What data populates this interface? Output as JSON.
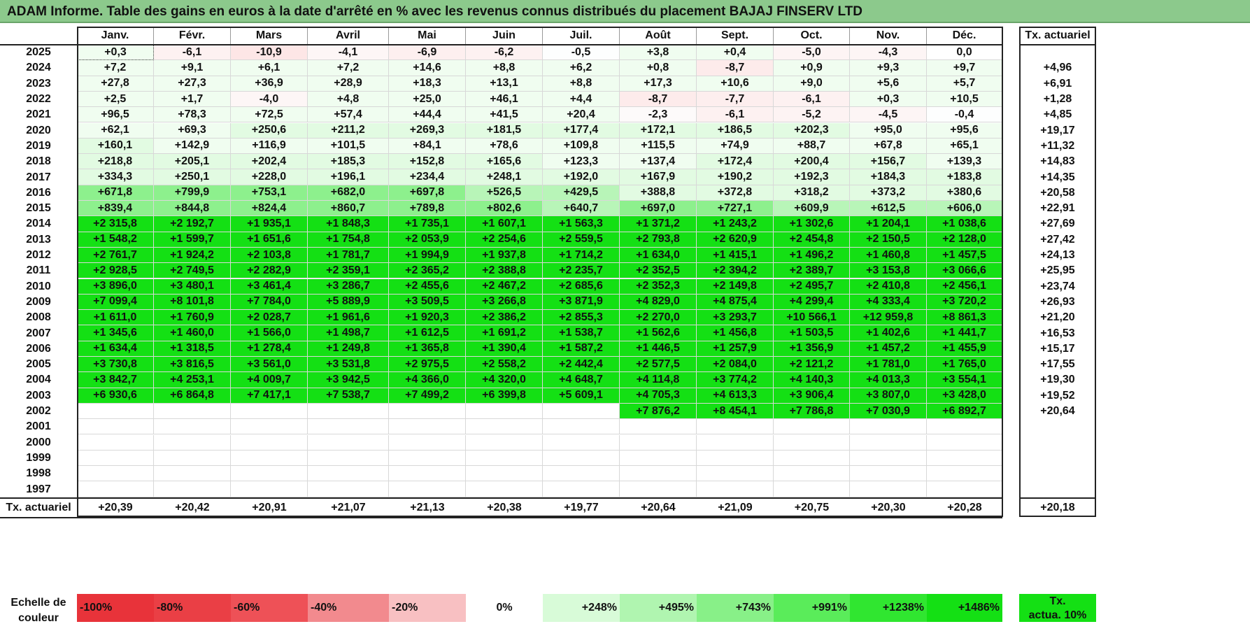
{
  "title": "ADAM Informe. Table des gains en euros à la date d'arrêté en % avec les revenus connus distribués du placement BAJAJ FINSERV LTD",
  "months": [
    "Janv.",
    "Févr.",
    "Mars",
    "Avril",
    "Mai",
    "Juin",
    "Juil.",
    "Août",
    "Sept.",
    "Oct.",
    "Nov.",
    "Déc."
  ],
  "actuarial_header": "Tx. actuariel",
  "rows": [
    {
      "year": "2025",
      "values": [
        "+0,3",
        "-6,1",
        "-10,9",
        "-4,1",
        "-6,9",
        "-6,2",
        "-0,5",
        "+3,8",
        "+0,4",
        "-5,0",
        "-4,3",
        "0,0"
      ],
      "rate": ""
    },
    {
      "year": "2024",
      "values": [
        "+7,2",
        "+9,1",
        "+6,1",
        "+7,2",
        "+14,6",
        "+8,8",
        "+6,2",
        "+0,8",
        "-8,7",
        "+0,9",
        "+9,3",
        "+9,7"
      ],
      "rate": "+4,96"
    },
    {
      "year": "2023",
      "values": [
        "+27,8",
        "+27,3",
        "+36,9",
        "+28,9",
        "+18,3",
        "+13,1",
        "+8,8",
        "+17,3",
        "+10,6",
        "+9,0",
        "+5,6",
        "+5,7"
      ],
      "rate": "+6,91"
    },
    {
      "year": "2022",
      "values": [
        "+2,5",
        "+1,7",
        "-4,0",
        "+4,8",
        "+25,0",
        "+46,1",
        "+4,4",
        "-8,7",
        "-7,7",
        "-6,1",
        "+0,3",
        "+10,5"
      ],
      "rate": "+1,28"
    },
    {
      "year": "2021",
      "values": [
        "+96,5",
        "+78,3",
        "+72,5",
        "+57,4",
        "+44,4",
        "+41,5",
        "+20,4",
        "-2,3",
        "-6,1",
        "-5,2",
        "-4,5",
        "-0,4"
      ],
      "rate": "+4,85"
    },
    {
      "year": "2020",
      "values": [
        "+62,1",
        "+69,3",
        "+250,6",
        "+211,2",
        "+269,3",
        "+181,5",
        "+177,4",
        "+172,1",
        "+186,5",
        "+202,3",
        "+95,0",
        "+95,6"
      ],
      "rate": "+19,17"
    },
    {
      "year": "2019",
      "values": [
        "+160,1",
        "+142,9",
        "+116,9",
        "+101,5",
        "+84,1",
        "+78,6",
        "+109,8",
        "+115,5",
        "+74,9",
        "+88,7",
        "+67,8",
        "+65,1"
      ],
      "rate": "+11,32"
    },
    {
      "year": "2018",
      "values": [
        "+218,8",
        "+205,1",
        "+202,4",
        "+185,3",
        "+152,8",
        "+165,6",
        "+123,3",
        "+137,4",
        "+172,4",
        "+200,4",
        "+156,7",
        "+139,3"
      ],
      "rate": "+14,83"
    },
    {
      "year": "2017",
      "values": [
        "+334,3",
        "+250,1",
        "+228,0",
        "+196,1",
        "+234,4",
        "+248,1",
        "+192,0",
        "+167,9",
        "+190,2",
        "+192,3",
        "+184,3",
        "+183,8"
      ],
      "rate": "+14,35"
    },
    {
      "year": "2016",
      "values": [
        "+671,8",
        "+799,9",
        "+753,1",
        "+682,0",
        "+697,8",
        "+526,5",
        "+429,5",
        "+388,8",
        "+372,8",
        "+318,2",
        "+373,2",
        "+380,6"
      ],
      "rate": "+20,58"
    },
    {
      "year": "2015",
      "values": [
        "+839,4",
        "+844,8",
        "+824,4",
        "+860,7",
        "+789,8",
        "+802,6",
        "+640,7",
        "+697,0",
        "+727,1",
        "+609,9",
        "+612,5",
        "+606,0"
      ],
      "rate": "+22,91"
    },
    {
      "year": "2014",
      "values": [
        "+2 315,8",
        "+2 192,7",
        "+1 935,1",
        "+1 848,3",
        "+1 735,1",
        "+1 607,1",
        "+1 563,3",
        "+1 371,2",
        "+1 243,2",
        "+1 302,6",
        "+1 204,1",
        "+1 038,6"
      ],
      "rate": "+27,69"
    },
    {
      "year": "2013",
      "values": [
        "+1 548,2",
        "+1 599,7",
        "+1 651,6",
        "+1 754,8",
        "+2 053,9",
        "+2 254,6",
        "+2 559,5",
        "+2 793,8",
        "+2 620,9",
        "+2 454,8",
        "+2 150,5",
        "+2 128,0"
      ],
      "rate": "+27,42"
    },
    {
      "year": "2012",
      "values": [
        "+2 761,7",
        "+1 924,2",
        "+2 103,8",
        "+1 781,7",
        "+1 994,9",
        "+1 937,8",
        "+1 714,2",
        "+1 634,0",
        "+1 415,1",
        "+1 496,2",
        "+1 460,8",
        "+1 457,5"
      ],
      "rate": "+24,13"
    },
    {
      "year": "2011",
      "values": [
        "+2 928,5",
        "+2 749,5",
        "+2 282,9",
        "+2 359,1",
        "+2 365,2",
        "+2 388,8",
        "+2 235,7",
        "+2 352,5",
        "+2 394,2",
        "+2 389,7",
        "+3 153,8",
        "+3 066,6"
      ],
      "rate": "+25,95"
    },
    {
      "year": "2010",
      "values": [
        "+3 896,0",
        "+3 480,1",
        "+3 461,4",
        "+3 286,7",
        "+2 455,6",
        "+2 467,2",
        "+2 685,6",
        "+2 352,3",
        "+2 149,8",
        "+2 495,7",
        "+2 410,8",
        "+2 456,1"
      ],
      "rate": "+23,74"
    },
    {
      "year": "2009",
      "values": [
        "+7 099,4",
        "+8 101,8",
        "+7 784,0",
        "+5 889,9",
        "+3 509,5",
        "+3 266,8",
        "+3 871,9",
        "+4 829,0",
        "+4 875,4",
        "+4 299,4",
        "+4 333,4",
        "+3 720,2"
      ],
      "rate": "+26,93"
    },
    {
      "year": "2008",
      "values": [
        "+1 611,0",
        "+1 760,9",
        "+2 028,7",
        "+1 961,6",
        "+1 920,3",
        "+2 386,2",
        "+2 855,3",
        "+2 270,0",
        "+3 293,7",
        "+10 566,1",
        "+12 959,8",
        "+8 861,3"
      ],
      "rate": "+21,20"
    },
    {
      "year": "2007",
      "values": [
        "+1 345,6",
        "+1 460,0",
        "+1 566,0",
        "+1 498,7",
        "+1 612,5",
        "+1 691,2",
        "+1 538,7",
        "+1 562,6",
        "+1 456,8",
        "+1 503,5",
        "+1 402,6",
        "+1 441,7"
      ],
      "rate": "+16,53"
    },
    {
      "year": "2006",
      "values": [
        "+1 634,4",
        "+1 318,5",
        "+1 278,4",
        "+1 249,8",
        "+1 365,8",
        "+1 390,4",
        "+1 587,2",
        "+1 446,5",
        "+1 257,9",
        "+1 356,9",
        "+1 457,2",
        "+1 455,9"
      ],
      "rate": "+15,17"
    },
    {
      "year": "2005",
      "values": [
        "+3 730,8",
        "+3 816,5",
        "+3 561,0",
        "+3 531,8",
        "+2 975,5",
        "+2 558,2",
        "+2 442,4",
        "+2 577,5",
        "+2 084,0",
        "+2 121,2",
        "+1 781,0",
        "+1 765,0"
      ],
      "rate": "+17,55"
    },
    {
      "year": "2004",
      "values": [
        "+3 842,7",
        "+4 253,1",
        "+4 009,7",
        "+3 942,5",
        "+4 366,0",
        "+4 320,0",
        "+4 648,7",
        "+4 114,8",
        "+3 774,2",
        "+4 140,3",
        "+4 013,3",
        "+3 554,1"
      ],
      "rate": "+19,30"
    },
    {
      "year": "2003",
      "values": [
        "+6 930,6",
        "+6 864,8",
        "+7 417,1",
        "+7 538,7",
        "+7 499,2",
        "+6 399,8",
        "+5 609,1",
        "+4 705,3",
        "+4 613,3",
        "+3 906,4",
        "+3 807,0",
        "+3 428,0"
      ],
      "rate": "+19,52"
    },
    {
      "year": "2002",
      "values": [
        "",
        "",
        "",
        "",
        "",
        "",
        "",
        "+7 876,2",
        "+8 454,1",
        "+7 786,8",
        "+7 030,9",
        "+6 892,7"
      ],
      "rate": "+20,64"
    },
    {
      "year": "2001",
      "values": [
        "",
        "",
        "",
        "",
        "",
        "",
        "",
        "",
        "",
        "",
        "",
        ""
      ],
      "rate": ""
    },
    {
      "year": "2000",
      "values": [
        "",
        "",
        "",
        "",
        "",
        "",
        "",
        "",
        "",
        "",
        "",
        ""
      ],
      "rate": ""
    },
    {
      "year": "1999",
      "values": [
        "",
        "",
        "",
        "",
        "",
        "",
        "",
        "",
        "",
        "",
        "",
        ""
      ],
      "rate": ""
    },
    {
      "year": "1998",
      "values": [
        "",
        "",
        "",
        "",
        "",
        "",
        "",
        "",
        "",
        "",
        "",
        ""
      ],
      "rate": ""
    },
    {
      "year": "1997",
      "values": [
        "",
        "",
        "",
        "",
        "",
        "",
        "",
        "",
        "",
        "",
        "",
        ""
      ],
      "rate": ""
    }
  ],
  "footer": {
    "label": "Tx. actuariel",
    "values": [
      "+20,39",
      "+20,42",
      "+20,91",
      "+21,07",
      "+21,13",
      "+20,38",
      "+19,77",
      "+20,64",
      "+21,09",
      "+20,75",
      "+20,30",
      "+20,28"
    ],
    "rate": "+20,18"
  },
  "scale": {
    "label_line1": "Echelle de",
    "label_line2": "couleur",
    "items": [
      {
        "text": "-100%",
        "color": "#e8333a",
        "align": "left"
      },
      {
        "text": "-80%",
        "color": "#ea3f45",
        "align": "left"
      },
      {
        "text": "-60%",
        "color": "#ee5157",
        "align": "left"
      },
      {
        "text": "-40%",
        "color": "#f28a8e",
        "align": "left"
      },
      {
        "text": "-20%",
        "color": "#f8c0c2",
        "align": "left"
      },
      {
        "text": "0%",
        "color": "#ffffff",
        "align": "center"
      },
      {
        "text": "+248%",
        "color": "#d8fbd8",
        "align": "right"
      },
      {
        "text": "+495%",
        "color": "#b0f5b0",
        "align": "right"
      },
      {
        "text": "+743%",
        "color": "#88f088",
        "align": "right"
      },
      {
        "text": "+991%",
        "color": "#5aec5a",
        "align": "right"
      },
      {
        "text": "+1238%",
        "color": "#30e630",
        "align": "right"
      },
      {
        "text": "+1486%",
        "color": "#14e014",
        "align": "right"
      }
    ],
    "badge_line1": "Tx.",
    "badge_line2": "actua. 10%",
    "badge_color": "#14e014"
  }
}
